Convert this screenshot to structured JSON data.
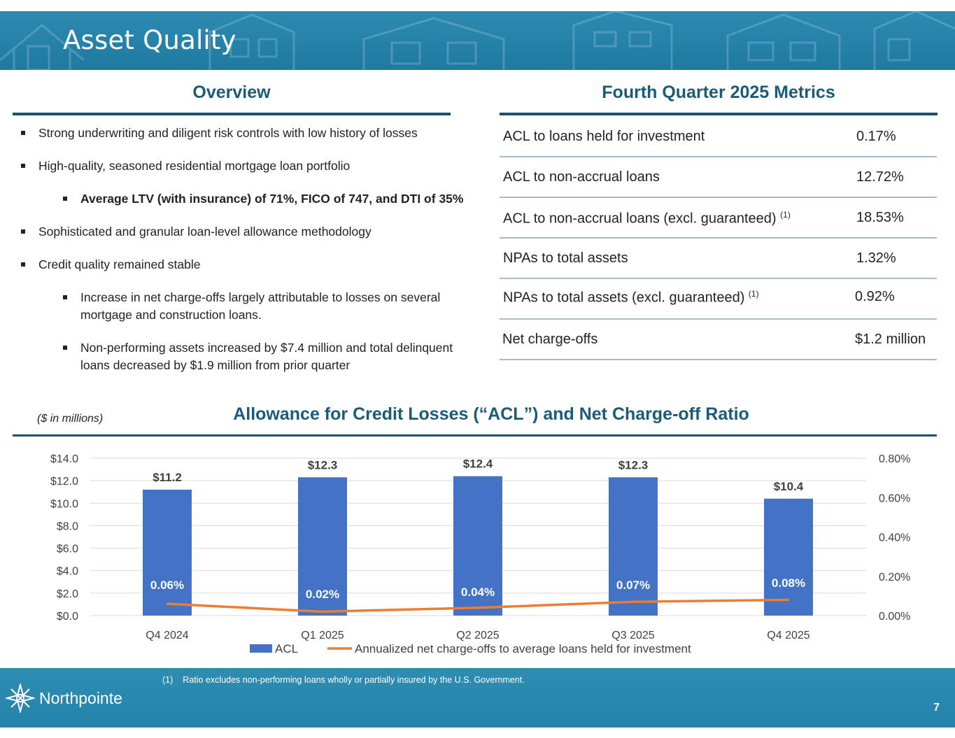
{
  "header": {
    "title": "Asset Quality"
  },
  "overview": {
    "heading": "Overview",
    "bullets": [
      {
        "text": "Strong underwriting and diligent risk controls with low history of losses",
        "level": 1
      },
      {
        "text": "High-quality, seasoned residential mortgage loan portfolio",
        "level": 1
      },
      {
        "text": "Average LTV (with insurance) of 71%, FICO of 747, and DTI of 35%",
        "level": 2,
        "bold": true
      },
      {
        "text": "Sophisticated and granular loan-level allowance methodology",
        "level": 1
      },
      {
        "text": "Credit quality remained stable",
        "level": 1
      },
      {
        "text": "Increase in net charge-offs largely attributable to losses on several mortgage and construction loans.",
        "level": 2
      },
      {
        "text": "Non-performing assets increased by $7.4 million and total delinquent loans decreased by $1.9 million from prior quarter",
        "level": 2
      }
    ]
  },
  "metrics": {
    "heading": "Fourth Quarter 2025 Metrics",
    "rows": [
      {
        "label": "ACL to loans held for investment",
        "sup": "",
        "value": "0.17%"
      },
      {
        "label": "ACL to non-accrual loans",
        "sup": "",
        "value": "12.72%"
      },
      {
        "label": "ACL to non-accrual loans (excl. guaranteed)",
        "sup": "(1)",
        "value": "18.53%"
      },
      {
        "label": "NPAs to total assets",
        "sup": "",
        "value": "1.32%"
      },
      {
        "label": "NPAs to total assets (excl. guaranteed)",
        "sup": "(1)",
        "value": "0.92%"
      },
      {
        "label": "Net charge-offs",
        "sup": "",
        "value": "$1.2 million"
      }
    ]
  },
  "chart_section": {
    "units_note": "($ in millions)",
    "title": "Allowance for Credit Losses (“ACL”) and Net Charge-off Ratio"
  },
  "chart_data": {
    "type": "bar",
    "categories": [
      "Q4 2024",
      "Q1 2025",
      "Q2 2025",
      "Q3 2025",
      "Q4 2025"
    ],
    "series": [
      {
        "name": "ACL",
        "type": "bar",
        "axis": "left",
        "values": [
          11.2,
          12.3,
          12.4,
          12.3,
          10.4
        ],
        "labels": [
          "$11.2",
          "$12.3",
          "$12.4",
          "$12.3",
          "$10.4"
        ],
        "color": "#4472c4"
      },
      {
        "name": "Annualized net charge-offs to average loans held for investment",
        "type": "line",
        "axis": "right",
        "values": [
          0.06,
          0.02,
          0.04,
          0.07,
          0.08
        ],
        "labels": [
          "0.06%",
          "0.02%",
          "0.04%",
          "0.07%",
          "0.08%"
        ],
        "color": "#ed7d31"
      }
    ],
    "y_left": {
      "min": 0,
      "max": 14,
      "ticks": [
        "$0.0",
        "$2.0",
        "$4.0",
        "$6.0",
        "$8.0",
        "$10.0",
        "$12.0",
        "$14.0"
      ]
    },
    "y_right": {
      "min": 0,
      "max": 0.8,
      "ticks": [
        "0.00%",
        "0.20%",
        "0.40%",
        "0.60%",
        "0.80%"
      ]
    },
    "grid": true,
    "legend": "bottom"
  },
  "footer": {
    "footnote_number": "(1)",
    "footnote_text": "Ratio excludes non-performing loans wholly or partially insured by the U.S. Government.",
    "logo_text": "Northpointe",
    "page_number": "7"
  },
  "colors": {
    "brand_dark": "#1b5b7a",
    "header_bg": "#2888ae",
    "bar": "#4472c4",
    "line": "#ed7d31"
  }
}
